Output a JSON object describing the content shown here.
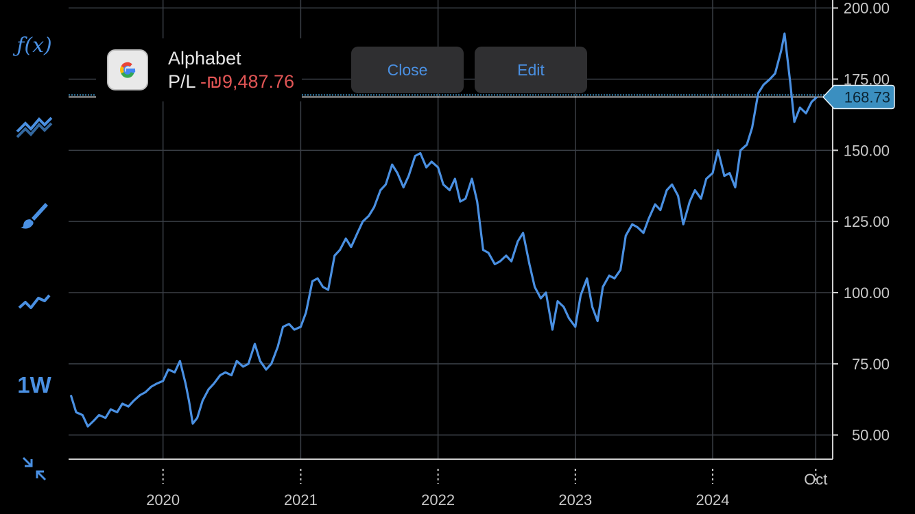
{
  "toolbar": {
    "function_label": "ƒ(x)",
    "timeframe_label": "1W",
    "items": [
      {
        "name": "indicators-icon"
      },
      {
        "name": "drawing-brush-icon"
      },
      {
        "name": "chart-type-line-icon"
      },
      {
        "name": "collapse-icon"
      }
    ]
  },
  "position": {
    "name": "Alphabet",
    "pl_label": "P/L",
    "pl_value": "-₪9,487.76",
    "logo_icon": "google-g-logo",
    "pl_color": "#e05555"
  },
  "actions": {
    "close_label": "Close",
    "edit_label": "Edit"
  },
  "chart_data": {
    "type": "line",
    "series": [
      {
        "color": "#4a90e2",
        "points": [
          [
            "2019-05-01",
            64
          ],
          [
            "2019-05-15",
            58
          ],
          [
            "2019-06-01",
            57
          ],
          [
            "2019-06-15",
            53
          ],
          [
            "2019-07-01",
            55
          ],
          [
            "2019-07-15",
            57
          ],
          [
            "2019-08-01",
            56
          ],
          [
            "2019-08-15",
            59
          ],
          [
            "2019-09-01",
            58
          ],
          [
            "2019-09-15",
            61
          ],
          [
            "2019-10-01",
            60
          ],
          [
            "2019-10-15",
            62
          ],
          [
            "2019-11-01",
            64
          ],
          [
            "2019-11-15",
            65
          ],
          [
            "2019-12-01",
            67
          ],
          [
            "2019-12-15",
            68
          ],
          [
            "2020-01-01",
            69
          ],
          [
            "2020-01-15",
            73
          ],
          [
            "2020-02-01",
            72
          ],
          [
            "2020-02-15",
            76
          ],
          [
            "2020-03-01",
            68
          ],
          [
            "2020-03-10",
            62
          ],
          [
            "2020-03-20",
            54
          ],
          [
            "2020-04-01",
            56
          ],
          [
            "2020-04-15",
            62
          ],
          [
            "2020-05-01",
            66
          ],
          [
            "2020-05-15",
            68
          ],
          [
            "2020-06-01",
            71
          ],
          [
            "2020-06-15",
            72
          ],
          [
            "2020-07-01",
            71
          ],
          [
            "2020-07-15",
            76
          ],
          [
            "2020-08-01",
            74
          ],
          [
            "2020-08-15",
            75
          ],
          [
            "2020-09-01",
            82
          ],
          [
            "2020-09-15",
            76
          ],
          [
            "2020-10-01",
            73
          ],
          [
            "2020-10-15",
            75
          ],
          [
            "2020-11-01",
            81
          ],
          [
            "2020-11-15",
            88
          ],
          [
            "2020-12-01",
            89
          ],
          [
            "2020-12-15",
            87
          ],
          [
            "2021-01-01",
            88
          ],
          [
            "2021-01-15",
            93
          ],
          [
            "2021-02-01",
            104
          ],
          [
            "2021-02-15",
            105
          ],
          [
            "2021-03-01",
            102
          ],
          [
            "2021-03-15",
            101
          ],
          [
            "2021-04-01",
            113
          ],
          [
            "2021-04-15",
            115
          ],
          [
            "2021-05-01",
            119
          ],
          [
            "2021-05-15",
            116
          ],
          [
            "2021-06-01",
            121
          ],
          [
            "2021-06-15",
            125
          ],
          [
            "2021-07-01",
            127
          ],
          [
            "2021-07-15",
            130
          ],
          [
            "2021-08-01",
            136
          ],
          [
            "2021-08-15",
            138
          ],
          [
            "2021-09-01",
            145
          ],
          [
            "2021-09-15",
            142
          ],
          [
            "2021-10-01",
            137
          ],
          [
            "2021-10-15",
            141
          ],
          [
            "2021-11-01",
            148
          ],
          [
            "2021-11-15",
            149
          ],
          [
            "2021-12-01",
            144
          ],
          [
            "2021-12-15",
            146
          ],
          [
            "2022-01-01",
            144
          ],
          [
            "2022-01-15",
            138
          ],
          [
            "2022-02-01",
            136
          ],
          [
            "2022-02-15",
            140
          ],
          [
            "2022-03-01",
            132
          ],
          [
            "2022-03-15",
            133
          ],
          [
            "2022-04-01",
            140
          ],
          [
            "2022-04-15",
            132
          ],
          [
            "2022-05-01",
            115
          ],
          [
            "2022-05-15",
            114
          ],
          [
            "2022-06-01",
            110
          ],
          [
            "2022-06-15",
            111
          ],
          [
            "2022-07-01",
            113
          ],
          [
            "2022-07-15",
            111
          ],
          [
            "2022-08-01",
            118
          ],
          [
            "2022-08-15",
            121
          ],
          [
            "2022-09-01",
            110
          ],
          [
            "2022-09-15",
            102
          ],
          [
            "2022-10-01",
            98
          ],
          [
            "2022-10-15",
            100
          ],
          [
            "2022-11-01",
            87
          ],
          [
            "2022-11-15",
            97
          ],
          [
            "2022-12-01",
            95
          ],
          [
            "2022-12-15",
            91
          ],
          [
            "2023-01-01",
            88
          ],
          [
            "2023-01-15",
            99
          ],
          [
            "2023-02-01",
            105
          ],
          [
            "2023-02-15",
            95
          ],
          [
            "2023-03-01",
            90
          ],
          [
            "2023-03-15",
            102
          ],
          [
            "2023-04-01",
            106
          ],
          [
            "2023-04-15",
            105
          ],
          [
            "2023-05-01",
            108
          ],
          [
            "2023-05-15",
            120
          ],
          [
            "2023-06-01",
            124
          ],
          [
            "2023-06-15",
            123
          ],
          [
            "2023-07-01",
            121
          ],
          [
            "2023-07-15",
            126
          ],
          [
            "2023-08-01",
            131
          ],
          [
            "2023-08-15",
            129
          ],
          [
            "2023-09-01",
            136
          ],
          [
            "2023-09-15",
            138
          ],
          [
            "2023-10-01",
            134
          ],
          [
            "2023-10-15",
            124
          ],
          [
            "2023-11-01",
            132
          ],
          [
            "2023-11-15",
            136
          ],
          [
            "2023-12-01",
            133
          ],
          [
            "2023-12-15",
            140
          ],
          [
            "2024-01-01",
            142
          ],
          [
            "2024-01-15",
            150
          ],
          [
            "2024-02-01",
            141
          ],
          [
            "2024-02-15",
            142
          ],
          [
            "2024-03-01",
            137
          ],
          [
            "2024-03-15",
            150
          ],
          [
            "2024-04-01",
            152
          ],
          [
            "2024-04-15",
            158
          ],
          [
            "2024-05-01",
            170
          ],
          [
            "2024-05-15",
            173
          ],
          [
            "2024-06-01",
            175
          ],
          [
            "2024-06-15",
            177
          ],
          [
            "2024-07-01",
            185
          ],
          [
            "2024-07-10",
            191
          ],
          [
            "2024-07-25",
            174
          ],
          [
            "2024-08-05",
            160
          ],
          [
            "2024-08-20",
            165
          ],
          [
            "2024-09-05",
            163
          ],
          [
            "2024-09-20",
            167
          ],
          [
            "2024-10-04",
            168.73
          ]
        ]
      }
    ],
    "x_ticks": [
      "2020",
      "2021",
      "2022",
      "2023",
      "2024",
      "Oct"
    ],
    "x_tick_dates": [
      "2020-01-01",
      "2021-01-01",
      "2022-01-01",
      "2023-01-01",
      "2024-01-01",
      "2024-10-01"
    ],
    "y_ticks": [
      "50.00",
      "75.00",
      "100.00",
      "125.00",
      "150.00",
      "175.00",
      "200.00"
    ],
    "y_tick_values": [
      50,
      75,
      100,
      125,
      150,
      175,
      200
    ],
    "xlim": [
      "2019-04-25",
      "2024-11-15"
    ],
    "ylim": [
      41.5,
      202.8
    ],
    "grid": true,
    "current_price": {
      "label": "168.73",
      "value": 168.73,
      "color": "#3b8fc0"
    }
  }
}
